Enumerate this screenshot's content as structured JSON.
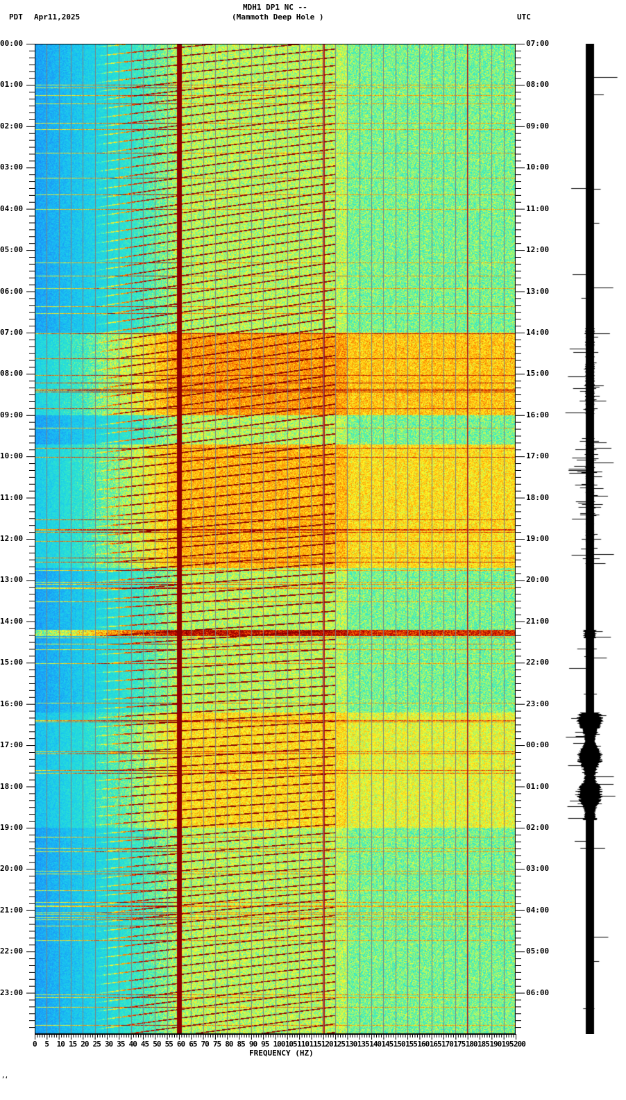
{
  "header": {
    "title_line1": "MDH1 DP1 NC --",
    "title_line2": "(Mammoth Deep Hole )",
    "left_tz": "PDT",
    "date": "Apr11,2025",
    "right_tz": "UTC"
  },
  "footer_mark": "’‘",
  "colors": {
    "low": "#1e78ff",
    "mid_low": "#19e6e6",
    "mid": "#ffff28",
    "high": "#ff8c00",
    "peak": "#8c0000",
    "grid": "#808080",
    "seismogram": "#000000"
  },
  "chart_data": {
    "type": "heatmap",
    "title": "MDH1 DP1 NC -- (Mammoth Deep Hole )",
    "subtitle": "Apr11,2025",
    "xlabel": "FREQUENCY (HZ)",
    "ylabel_left": "PDT",
    "ylabel_right": "UTC",
    "xlim": [
      0,
      200
    ],
    "x_ticks": [
      0,
      5,
      10,
      15,
      20,
      25,
      30,
      35,
      40,
      45,
      50,
      55,
      60,
      65,
      70,
      75,
      80,
      85,
      90,
      95,
      100,
      105,
      110,
      115,
      120,
      125,
      130,
      135,
      140,
      145,
      150,
      155,
      160,
      165,
      170,
      175,
      180,
      185,
      190,
      195,
      200
    ],
    "x_tick_labels": [
      "0",
      "5",
      "10",
      "15",
      "20",
      "25",
      "30",
      "35",
      "40",
      "45",
      "50",
      "55",
      "60",
      "65",
      "70",
      "75",
      "80",
      "85",
      "90",
      "95",
      "100",
      "105",
      "110",
      "115",
      "120",
      "125",
      "130",
      "135",
      "140",
      "145",
      "150",
      "155",
      "160",
      "165",
      "170",
      "175",
      "180",
      "185",
      "190",
      "195",
      "200"
    ],
    "y_ticks_left": [
      "00:00",
      "01:00",
      "02:00",
      "03:00",
      "04:00",
      "05:00",
      "06:00",
      "07:00",
      "08:00",
      "09:00",
      "10:00",
      "11:00",
      "12:00",
      "13:00",
      "14:00",
      "15:00",
      "16:00",
      "17:00",
      "18:00",
      "19:00",
      "20:00",
      "21:00",
      "22:00",
      "23:00"
    ],
    "y_ticks_right": [
      "07:00",
      "08:00",
      "09:00",
      "10:00",
      "11:00",
      "12:00",
      "13:00",
      "14:00",
      "15:00",
      "16:00",
      "17:00",
      "18:00",
      "19:00",
      "20:00",
      "21:00",
      "22:00",
      "23:00",
      "00:00",
      "01:00",
      "02:00",
      "03:00",
      "04:00",
      "05:00",
      "06:00"
    ],
    "minor_ticks_per_hour": 6,
    "persistent_lines_hz": [
      60,
      120,
      180
    ],
    "high_energy_periods_pdt": [
      {
        "start": "07:00",
        "end": "09:00",
        "note": "broadband noise bursts"
      },
      {
        "start": "09:45",
        "end": "12:40",
        "note": "elevated noise, chirp features at ~90Hz and ~160Hz"
      },
      {
        "start": "14:15",
        "end": "14:20",
        "note": "strong broadband band"
      },
      {
        "start": "16:15",
        "end": "18:45",
        "note": "elevated energy, seismogram activity"
      }
    ],
    "colormap": [
      "blue (low)",
      "cyan",
      "yellow",
      "orange",
      "dark red (high)"
    ],
    "grid": true
  }
}
